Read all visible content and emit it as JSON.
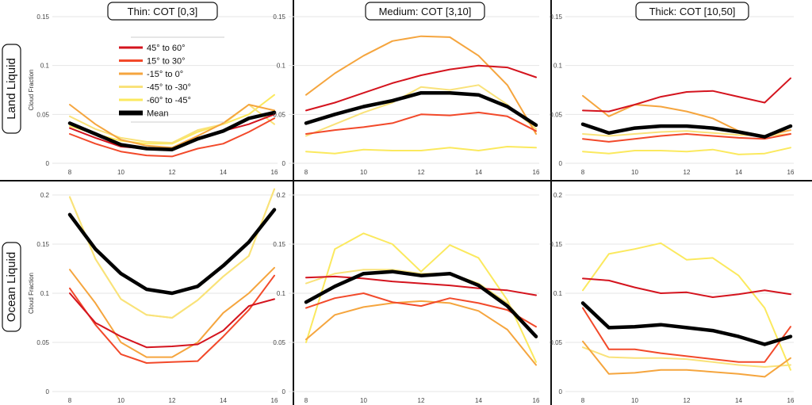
{
  "colors": {
    "45° to 60°": "#d4141e",
    "15° to 30°": "#f2492a",
    "-15° to 0°": "#f5a53e",
    "-45° to -30°": "#f9e27a",
    "-60° to -45°": "#fbe95e",
    "Mean": "#000000"
  },
  "chart_data": [
    {
      "type": "line",
      "panel": "Land Liquid / Thin",
      "title": "Thin: COT [0,3]",
      "row_label": "Land Liquid",
      "ylabel": "Cloud Fraction",
      "x": [
        8,
        9,
        10,
        11,
        12,
        13,
        14,
        15,
        16
      ],
      "xticks": [
        8,
        10,
        12,
        14,
        16
      ],
      "yticks": [
        0,
        0.05,
        0.1,
        0.15
      ],
      "ylim": [
        0,
        0.15
      ],
      "series": [
        {
          "name": "45° to 60°",
          "values": [
            0.036,
            0.026,
            0.017,
            0.015,
            0.014,
            0.026,
            0.033,
            0.04,
            0.05
          ]
        },
        {
          "name": "15° to 30°",
          "values": [
            0.03,
            0.02,
            0.012,
            0.008,
            0.007,
            0.015,
            0.02,
            0.032,
            0.046
          ]
        },
        {
          "name": "-15° to 0°",
          "values": [
            0.06,
            0.04,
            0.024,
            0.018,
            0.016,
            0.028,
            0.041,
            0.06,
            0.054
          ]
        },
        {
          "name": "-45° to -30°",
          "values": [
            0.048,
            0.035,
            0.026,
            0.022,
            0.021,
            0.034,
            0.04,
            0.06,
            0.04
          ]
        },
        {
          "name": "-60° to -45°",
          "values": [
            0.038,
            0.03,
            0.023,
            0.02,
            0.02,
            0.032,
            0.04,
            0.05,
            0.07
          ]
        },
        {
          "name": "Mean",
          "values": [
            0.041,
            0.03,
            0.019,
            0.015,
            0.014,
            0.025,
            0.033,
            0.046,
            0.052
          ]
        }
      ]
    },
    {
      "type": "line",
      "panel": "Land Liquid / Medium",
      "title": "Medium: COT [3,10]",
      "row_label": "Land Liquid",
      "ylabel": "",
      "x": [
        8,
        9,
        10,
        11,
        12,
        13,
        14,
        15,
        16
      ],
      "xticks": [
        8,
        10,
        12,
        14,
        16
      ],
      "yticks": [
        0,
        0.05,
        0.1,
        0.15
      ],
      "ylim": [
        0,
        0.15
      ],
      "series": [
        {
          "name": "45° to 60°",
          "values": [
            0.054,
            0.062,
            0.072,
            0.082,
            0.09,
            0.096,
            0.1,
            0.098,
            0.088
          ]
        },
        {
          "name": "15° to 30°",
          "values": [
            0.03,
            0.034,
            0.037,
            0.041,
            0.05,
            0.049,
            0.052,
            0.048,
            0.033
          ]
        },
        {
          "name": "-15° to 0°",
          "values": [
            0.07,
            0.092,
            0.11,
            0.125,
            0.13,
            0.129,
            0.11,
            0.08,
            0.03
          ]
        },
        {
          "name": "-45° to -30°",
          "values": [
            0.028,
            0.04,
            0.052,
            0.062,
            0.078,
            0.075,
            0.08,
            0.06,
            0.035
          ]
        },
        {
          "name": "-60° to -45°",
          "values": [
            0.012,
            0.01,
            0.014,
            0.013,
            0.013,
            0.016,
            0.013,
            0.017,
            0.016
          ]
        },
        {
          "name": "Mean",
          "values": [
            0.041,
            0.05,
            0.058,
            0.064,
            0.072,
            0.072,
            0.07,
            0.058,
            0.039
          ]
        }
      ]
    },
    {
      "type": "line",
      "panel": "Land Liquid / Thick",
      "title": "Thick: COT [10,50]",
      "row_label": "Land Liquid",
      "ylabel": "",
      "x": [
        8,
        9,
        10,
        11,
        12,
        13,
        14,
        15,
        16
      ],
      "xticks": [
        8,
        10,
        12,
        14,
        16
      ],
      "yticks": [
        0,
        0.05,
        0.1,
        0.15
      ],
      "ylim": [
        0,
        0.15
      ],
      "series": [
        {
          "name": "45° to 60°",
          "values": [
            0.054,
            0.053,
            0.06,
            0.068,
            0.073,
            0.074,
            0.068,
            0.062,
            0.087
          ]
        },
        {
          "name": "15° to 30°",
          "values": [
            0.025,
            0.022,
            0.025,
            0.028,
            0.03,
            0.028,
            0.026,
            0.025,
            0.03
          ]
        },
        {
          "name": "-15° to 0°",
          "values": [
            0.069,
            0.048,
            0.06,
            0.058,
            0.053,
            0.046,
            0.033,
            0.028,
            0.034
          ]
        },
        {
          "name": "-45° to -30°",
          "values": [
            0.03,
            0.028,
            0.03,
            0.032,
            0.033,
            0.031,
            0.029,
            0.028,
            0.03
          ]
        },
        {
          "name": "-60° to -45°",
          "values": [
            0.012,
            0.01,
            0.013,
            0.013,
            0.012,
            0.014,
            0.009,
            0.01,
            0.016
          ]
        },
        {
          "name": "Mean",
          "values": [
            0.04,
            0.031,
            0.036,
            0.038,
            0.038,
            0.036,
            0.032,
            0.027,
            0.038
          ]
        }
      ]
    },
    {
      "type": "line",
      "panel": "Ocean Liquid / Thin",
      "title": "",
      "row_label": "Ocean Liquid",
      "ylabel": "Cloud Fraction",
      "x": [
        8,
        9,
        10,
        11,
        12,
        13,
        14,
        15,
        16
      ],
      "xticks": [
        8,
        10,
        12,
        14,
        16
      ],
      "yticks": [
        0,
        0.05,
        0.1,
        0.15,
        0.2
      ],
      "ylim": [
        0,
        0.2
      ],
      "series": [
        {
          "name": "45° to 60°",
          "values": [
            0.1,
            0.07,
            0.056,
            0.045,
            0.046,
            0.048,
            0.062,
            0.087,
            0.094
          ]
        },
        {
          "name": "15° to 30°",
          "values": [
            0.105,
            0.068,
            0.038,
            0.029,
            0.03,
            0.031,
            0.056,
            0.083,
            0.118
          ]
        },
        {
          "name": "-15° to 0°",
          "values": [
            0.124,
            0.09,
            0.05,
            0.035,
            0.035,
            0.05,
            0.08,
            0.1,
            0.126
          ]
        },
        {
          "name": "-45° to -30°",
          "values": [
            0.198,
            0.135,
            0.094,
            0.078,
            0.075,
            0.093,
            0.117,
            0.138,
            0.206
          ]
        },
        {
          "name": "-60° to -45°",
          "values": [
            0.198,
            0.135,
            0.094,
            0.078,
            0.075,
            0.093,
            0.117,
            0.138,
            0.206
          ]
        },
        {
          "name": "Mean",
          "values": [
            0.18,
            0.145,
            0.12,
            0.104,
            0.1,
            0.107,
            0.128,
            0.152,
            0.185
          ]
        }
      ]
    },
    {
      "type": "line",
      "panel": "Ocean Liquid / Medium",
      "title": "",
      "row_label": "Ocean Liquid",
      "ylabel": "",
      "x": [
        8,
        9,
        10,
        11,
        12,
        13,
        14,
        15,
        16
      ],
      "xticks": [
        8,
        10,
        12,
        14,
        16
      ],
      "yticks": [
        0,
        0.05,
        0.1,
        0.15,
        0.2
      ],
      "ylim": [
        0,
        0.2
      ],
      "series": [
        {
          "name": "45° to 60°",
          "values": [
            0.116,
            0.117,
            0.115,
            0.112,
            0.11,
            0.108,
            0.105,
            0.103,
            0.098
          ]
        },
        {
          "name": "15° to 30°",
          "values": [
            0.085,
            0.095,
            0.1,
            0.091,
            0.087,
            0.095,
            0.09,
            0.083,
            0.066
          ]
        },
        {
          "name": "-15° to 0°",
          "values": [
            0.053,
            0.078,
            0.086,
            0.09,
            0.092,
            0.09,
            0.082,
            0.063,
            0.027
          ]
        },
        {
          "name": "-45° to -30°",
          "values": [
            0.11,
            0.12,
            0.124,
            0.124,
            0.12,
            0.12,
            0.11,
            0.09,
            0.055
          ]
        },
        {
          "name": "-60° to -45°",
          "values": [
            0.05,
            0.145,
            0.161,
            0.15,
            0.122,
            0.149,
            0.136,
            0.093,
            0.03
          ]
        },
        {
          "name": "Mean",
          "values": [
            0.091,
            0.107,
            0.12,
            0.122,
            0.118,
            0.12,
            0.108,
            0.087,
            0.056
          ]
        }
      ]
    },
    {
      "type": "line",
      "panel": "Ocean Liquid / Thick",
      "title": "",
      "row_label": "Ocean Liquid",
      "ylabel": "",
      "x": [
        8,
        9,
        10,
        11,
        12,
        13,
        14,
        15,
        16
      ],
      "xticks": [
        8,
        10,
        12,
        14,
        16
      ],
      "yticks": [
        0,
        0.05,
        0.1,
        0.15,
        0.2
      ],
      "ylim": [
        0,
        0.2
      ],
      "series": [
        {
          "name": "45° to 60°",
          "values": [
            0.115,
            0.113,
            0.106,
            0.1,
            0.101,
            0.096,
            0.099,
            0.103,
            0.099
          ]
        },
        {
          "name": "15° to 30°",
          "values": [
            0.085,
            0.043,
            0.043,
            0.039,
            0.036,
            0.033,
            0.03,
            0.03,
            0.066
          ]
        },
        {
          "name": "-15° to 0°",
          "values": [
            0.051,
            0.018,
            0.019,
            0.022,
            0.022,
            0.02,
            0.018,
            0.015,
            0.034
          ]
        },
        {
          "name": "-45° to -30°",
          "values": [
            0.045,
            0.035,
            0.034,
            0.034,
            0.033,
            0.03,
            0.027,
            0.025,
            0.027
          ]
        },
        {
          "name": "-60° to -45°",
          "values": [
            0.103,
            0.14,
            0.145,
            0.151,
            0.134,
            0.136,
            0.118,
            0.085,
            0.022
          ]
        },
        {
          "name": "Mean",
          "values": [
            0.09,
            0.065,
            0.066,
            0.068,
            0.065,
            0.062,
            0.056,
            0.048,
            0.056
          ]
        }
      ]
    }
  ],
  "legend": [
    "45° to 60°",
    "15° to 30°",
    "-15° to 0°",
    "-45° to -30°",
    "-60° to -45°",
    "Mean"
  ]
}
